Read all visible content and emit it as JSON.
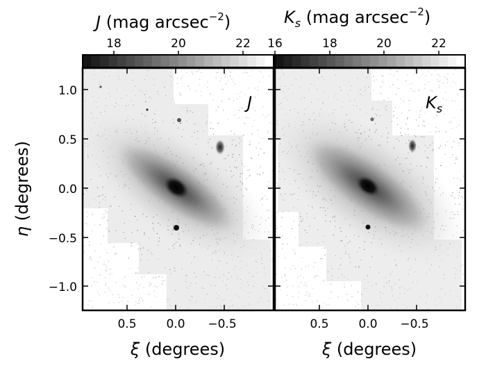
{
  "figure": {
    "colorbars": [
      {
        "label_symbol": "J",
        "label_text": " (mag arcsec",
        "label_exp": "−2",
        "label_close": ")",
        "ticks": [
          "18",
          "20",
          "22"
        ]
      },
      {
        "label_symbol": "K",
        "label_sub": "s",
        "label_text": " (mag arcsec",
        "label_exp": "−2",
        "label_close": ")",
        "ticks": [
          "16",
          "18",
          "20",
          "22"
        ]
      }
    ],
    "panels": [
      {
        "band_symbol": "J",
        "band_sub": ""
      },
      {
        "band_symbol": "K",
        "band_sub": "s"
      }
    ],
    "y_axis": {
      "symbol": "η",
      "label": " (degrees)",
      "ticks": [
        "1.0",
        "0.5",
        "0.0",
        "−0.5",
        "−1.0"
      ]
    },
    "x_axis": {
      "symbol": "ξ",
      "label": " (degrees)",
      "ticks": [
        "0.5",
        "0.0",
        "−0.5"
      ]
    }
  },
  "colors": {
    "background": "#ffffff",
    "frame": "#000000",
    "galaxy_core": "#0a0a0a"
  }
}
